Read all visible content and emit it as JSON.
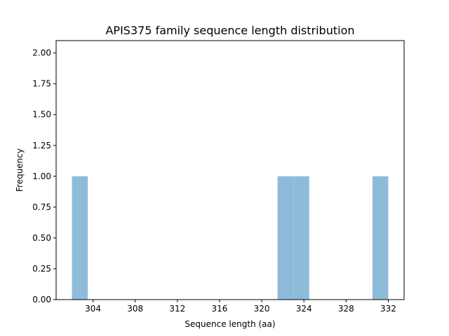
{
  "chart_data": {
    "type": "bar",
    "title": "APIS375 family sequence length distribution",
    "xlabel": "Sequence length (aa)",
    "ylabel": "Frequency",
    "bin_start": 302,
    "bin_width": 1.5,
    "values": [
      1,
      0,
      0,
      0,
      0,
      0,
      0,
      0,
      0,
      0,
      0,
      0,
      0,
      1,
      1,
      0,
      0,
      0,
      0,
      1
    ],
    "xlim": [
      300.5,
      333.5
    ],
    "ylim": [
      0,
      2.1
    ],
    "xticks": [
      304,
      308,
      312,
      316,
      320,
      324,
      328,
      332
    ],
    "xtick_labels": [
      "304",
      "308",
      "312",
      "316",
      "320",
      "324",
      "328",
      "332"
    ],
    "yticks": [
      0,
      0.25,
      0.5,
      0.75,
      1.0,
      1.25,
      1.5,
      1.75,
      2.0
    ],
    "ytick_labels": [
      "0.00",
      "0.25",
      "0.50",
      "0.75",
      "1.00",
      "1.25",
      "1.50",
      "1.75",
      "2.00"
    ],
    "bar_color": "#8fbbda",
    "grid": false,
    "legend": "none"
  }
}
